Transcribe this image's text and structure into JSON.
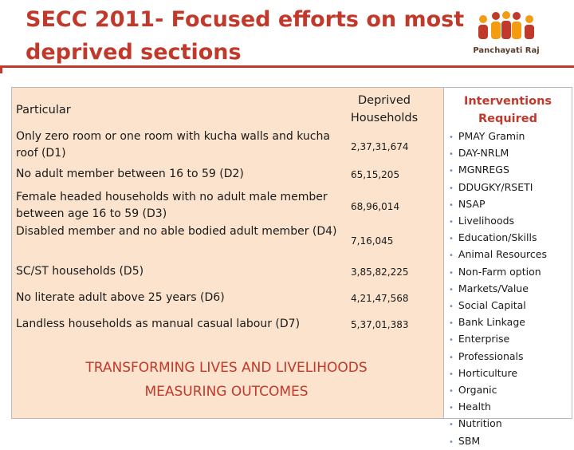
{
  "slide": {
    "title": "SECC 2011- Focused efforts on most deprived sections",
    "logo_text": "Panchayati Raj"
  },
  "table": {
    "header_particular": "Particular",
    "header_households": "Deprived Households",
    "rows": [
      {
        "particular": "Only zero room or one room with kucha walls and kucha roof (D1)",
        "households": "2,37,31,674"
      },
      {
        "particular": "No adult member between 16 to 59 (D2)",
        "households": "65,15,205"
      },
      {
        "particular": "Female headed households with no adult male member between age 16 to 59 (D3)",
        "households": "68,96,014"
      },
      {
        "particular": "Disabled member and no able bodied adult member (D4)",
        "households": "7,16,045"
      },
      {
        "particular": "SC/ST households (D5)",
        "households": "3,85,82,225"
      },
      {
        "particular": "No literate adult above 25 years (D6)",
        "households": "4,21,47,568"
      },
      {
        "particular": "Landless households as manual casual labour (D7)",
        "households": "5,37,01,383"
      }
    ]
  },
  "banner": {
    "line1": "TRANSFORMING LIVES AND LIVELIHOODS",
    "line2": "MEASURING OUTCOMES"
  },
  "interventions": {
    "header": "Interventions Required",
    "items": [
      "PMAY Gramin",
      "DAY-NRLM",
      "MGNREGS",
      "DDUGKY/RSETI",
      "NSAP",
      "Livelihoods",
      "Education/Skills",
      "Animal Resources",
      "Non-Farm option",
      "Markets/Value",
      "Social Capital",
      "Bank Linkage",
      "Enterprise",
      "Professionals",
      "Horticulture",
      "Organic",
      "Health",
      "Nutrition",
      "SBM"
    ]
  },
  "colors": {
    "title": "#c0392b",
    "panel_bg": "#fbe3cd",
    "bullet": "#6a8bc9",
    "logo_orange": "#f39c12",
    "logo_red": "#c0392b"
  }
}
